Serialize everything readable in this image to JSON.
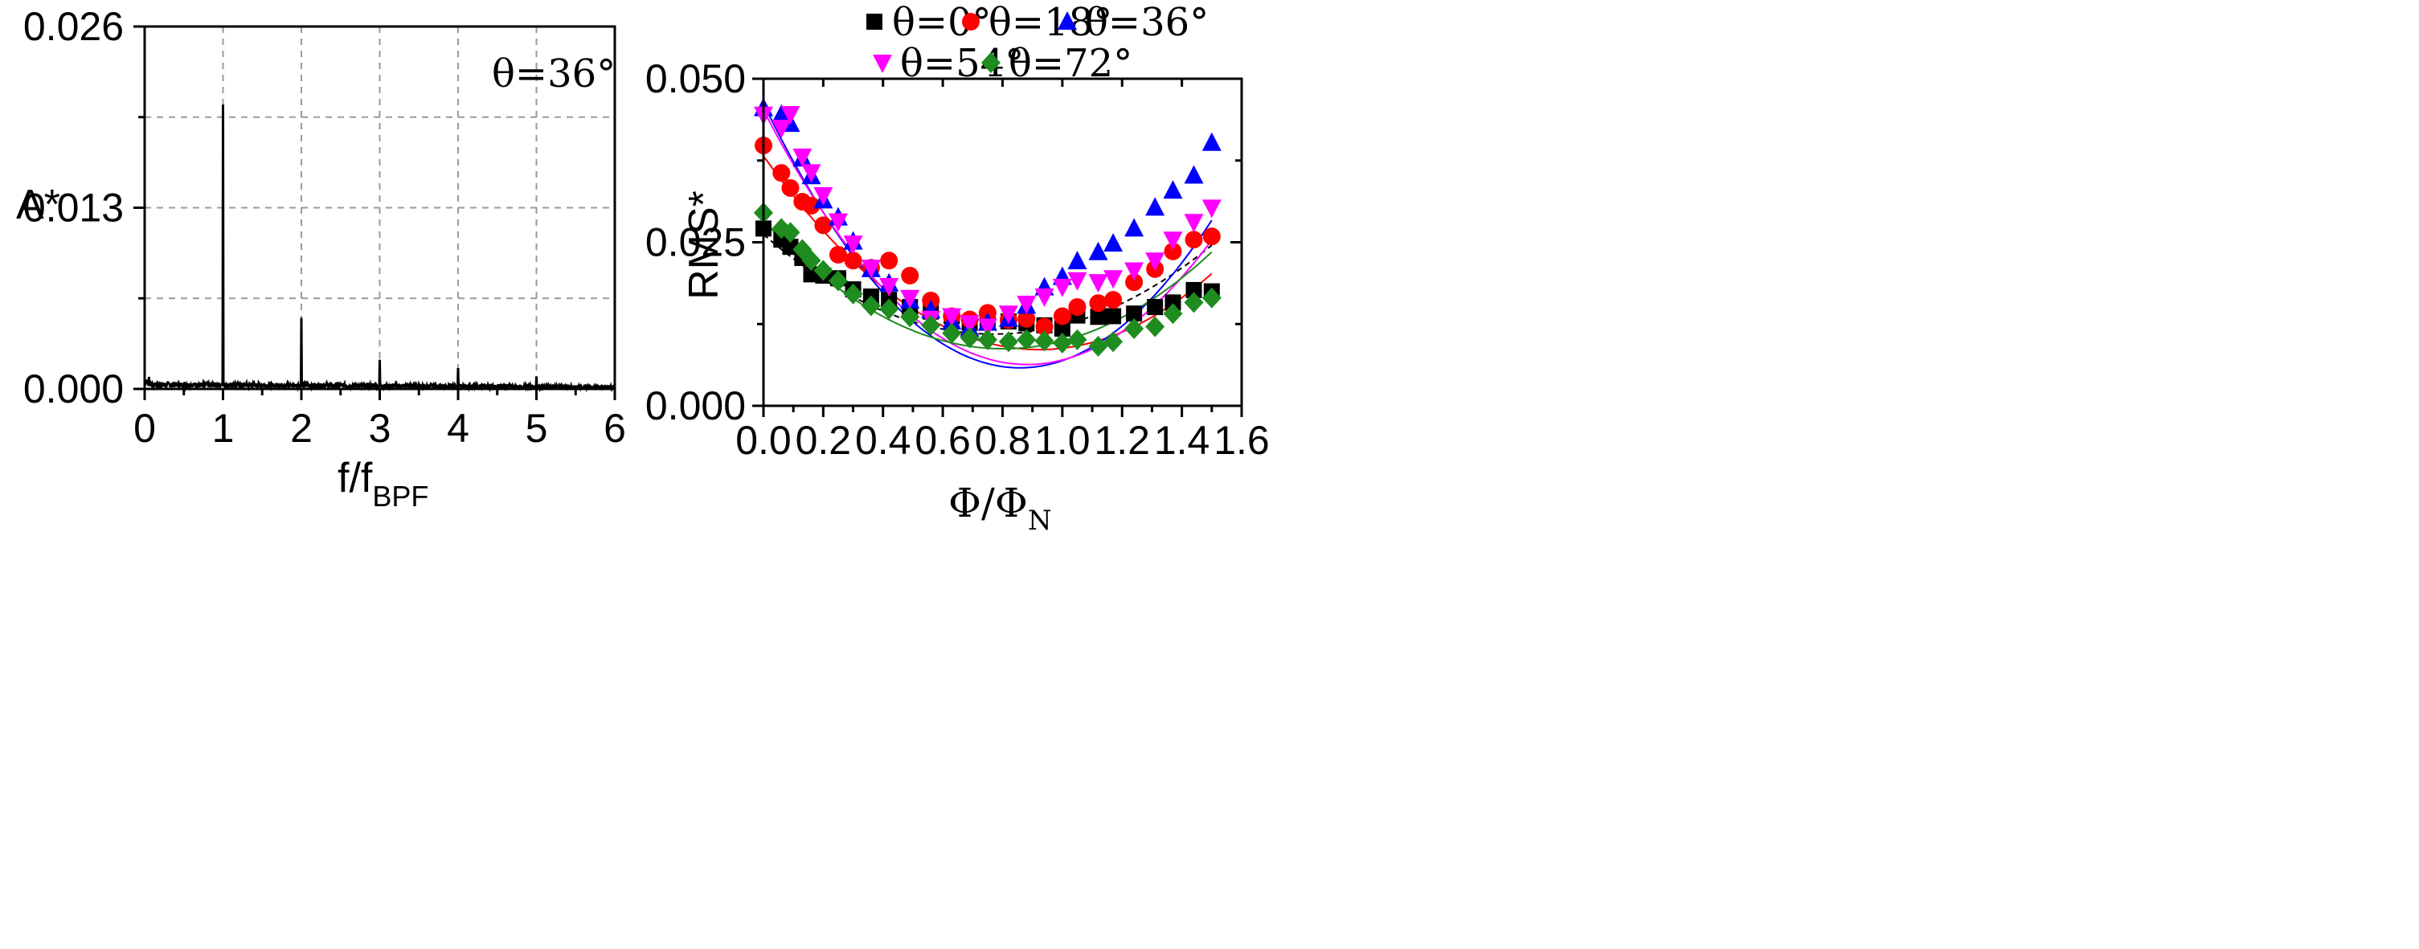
{
  "chart_data": [
    {
      "type": "line",
      "title": "",
      "annotation": "θ=36°",
      "xlabel_main": "f/f",
      "xlabel_sub": "BPF",
      "ylabel": "A*",
      "xlim": [
        0,
        6
      ],
      "ylim": [
        0,
        0.026
      ],
      "x_ticks": [
        0,
        1,
        2,
        3,
        4,
        5,
        6
      ],
      "x_tick_labels": [
        "0",
        "1",
        "2",
        "3",
        "4",
        "5",
        "6"
      ],
      "y_ticks": [
        0.0,
        0.013,
        0.026
      ],
      "y_tick_labels": [
        "0.000",
        "0.013",
        "0.026"
      ],
      "grid": true,
      "peaks": [
        {
          "x": 1,
          "y": 0.0204
        },
        {
          "x": 2,
          "y": 0.0051
        },
        {
          "x": 3,
          "y": 0.0021
        },
        {
          "x": 4,
          "y": 0.0015
        },
        {
          "x": 5,
          "y": 0.0009
        }
      ],
      "noise_level": 0.0005
    },
    {
      "type": "scatter",
      "xlabel_main": "Φ/Φ",
      "xlabel_sub": "N",
      "ylabel": "RMS*",
      "xlim": [
        0,
        1.6
      ],
      "ylim": [
        0,
        0.05
      ],
      "x_ticks": [
        0,
        0.2,
        0.4,
        0.6,
        0.8,
        1.0,
        1.2,
        1.4,
        1.6
      ],
      "x_tick_labels": [
        "0.0",
        "0.2",
        "0.4",
        "0.6",
        "0.8",
        "1.0",
        "1.2",
        "1.4",
        "1.6"
      ],
      "y_ticks": [
        0,
        0.025,
        0.05
      ],
      "y_tick_labels": [
        "0.000",
        "0.025",
        "0.050"
      ],
      "legend_position": "top",
      "series": [
        {
          "name": "θ=0°",
          "color": "#000000",
          "marker": "square",
          "x": [
            0,
            0.06,
            0.09,
            0.13,
            0.16,
            0.2,
            0.25,
            0.3,
            0.36,
            0.42,
            0.49,
            0.56,
            0.63,
            0.69,
            0.75,
            0.82,
            0.88,
            0.94,
            1.0,
            1.05,
            1.12,
            1.17,
            1.24,
            1.31,
            1.37,
            1.44,
            1.5
          ],
          "y": [
            0.0271,
            0.0254,
            0.0243,
            0.0226,
            0.0201,
            0.0199,
            0.0195,
            0.0178,
            0.0167,
            0.0162,
            0.0151,
            0.0144,
            0.0137,
            0.0127,
            0.0128,
            0.0129,
            0.0126,
            0.0123,
            0.0118,
            0.0138,
            0.0136,
            0.0137,
            0.0141,
            0.0151,
            0.0158,
            0.0177,
            0.0175
          ],
          "fit": [
            0.0262,
            -0.0395,
            0.0256
          ]
        },
        {
          "name": "θ=18°",
          "color": "#ff0000",
          "marker": "circle",
          "x": [
            0,
            0.06,
            0.09,
            0.13,
            0.16,
            0.2,
            0.25,
            0.3,
            0.36,
            0.42,
            0.49,
            0.56,
            0.63,
            0.69,
            0.75,
            0.82,
            0.88,
            0.94,
            1.0,
            1.05,
            1.12,
            1.17,
            1.24,
            1.31,
            1.37,
            1.44,
            1.5
          ],
          "y": [
            0.0398,
            0.0356,
            0.0333,
            0.0312,
            0.0306,
            0.0276,
            0.0231,
            0.0222,
            0.0211,
            0.0222,
            0.0199,
            0.0161,
            0.0137,
            0.0132,
            0.0142,
            0.0131,
            0.0133,
            0.0121,
            0.0137,
            0.0151,
            0.0157,
            0.0162,
            0.0189,
            0.0209,
            0.0236,
            0.0254,
            0.0259
          ],
          "fit": [
            0.0382,
            -0.0642,
            0.0348
          ]
        },
        {
          "name": "θ=36°",
          "color": "#0000ff",
          "marker": "triangle-up",
          "x": [
            0,
            0.06,
            0.09,
            0.13,
            0.16,
            0.2,
            0.25,
            0.3,
            0.36,
            0.42,
            0.49,
            0.56,
            0.63,
            0.69,
            0.75,
            0.82,
            0.88,
            0.94,
            1.0,
            1.05,
            1.12,
            1.17,
            1.24,
            1.31,
            1.37,
            1.44,
            1.5
          ],
          "y": [
            0.0455,
            0.0445,
            0.0431,
            0.0378,
            0.0351,
            0.0314,
            0.0288,
            0.0251,
            0.0209,
            0.0187,
            0.0161,
            0.0146,
            0.0129,
            0.0118,
            0.0127,
            0.0133,
            0.0153,
            0.0181,
            0.0197,
            0.0221,
            0.0235,
            0.0248,
            0.0271,
            0.0303,
            0.0329,
            0.0352,
            0.0402
          ],
          "fit": [
            0.0462,
            -0.0941,
            0.0548
          ]
        },
        {
          "name": "θ=54°",
          "color": "#ff00ff",
          "marker": "triangle-down",
          "x": [
            0,
            0.06,
            0.09,
            0.13,
            0.16,
            0.2,
            0.25,
            0.3,
            0.36,
            0.42,
            0.49,
            0.56,
            0.63,
            0.69,
            0.75,
            0.82,
            0.88,
            0.94,
            1.0,
            1.05,
            1.12,
            1.17,
            1.24,
            1.31,
            1.37,
            1.44,
            1.5
          ],
          "y": [
            0.0445,
            0.0425,
            0.0446,
            0.0381,
            0.0357,
            0.0322,
            0.0282,
            0.0248,
            0.0211,
            0.0183,
            0.0165,
            0.0133,
            0.0137,
            0.0126,
            0.0121,
            0.0141,
            0.0156,
            0.0167,
            0.0182,
            0.0192,
            0.0189,
            0.0195,
            0.0207,
            0.0222,
            0.0254,
            0.0281,
            0.0303
          ],
          "fit": [
            0.0452,
            -0.0881,
            0.0499
          ]
        },
        {
          "name": "θ=72°",
          "color": "#1e8c1e",
          "marker": "diamond",
          "x": [
            0,
            0.06,
            0.09,
            0.13,
            0.16,
            0.2,
            0.25,
            0.3,
            0.36,
            0.42,
            0.49,
            0.56,
            0.63,
            0.69,
            0.75,
            0.82,
            0.88,
            0.94,
            1.0,
            1.05,
            1.12,
            1.17,
            1.24,
            1.31,
            1.37,
            1.44,
            1.5
          ],
          "y": [
            0.0295,
            0.0271,
            0.0265,
            0.0239,
            0.0222,
            0.0207,
            0.0191,
            0.0171,
            0.0153,
            0.0148,
            0.0136,
            0.0123,
            0.0111,
            0.0104,
            0.0101,
            0.0098,
            0.0101,
            0.0099,
            0.0096,
            0.0101,
            0.0091,
            0.0098,
            0.0118,
            0.0121,
            0.0141,
            0.0158,
            0.0165
          ],
          "fit": [
            0.0283,
            -0.0488,
            0.0304
          ]
        }
      ]
    }
  ]
}
